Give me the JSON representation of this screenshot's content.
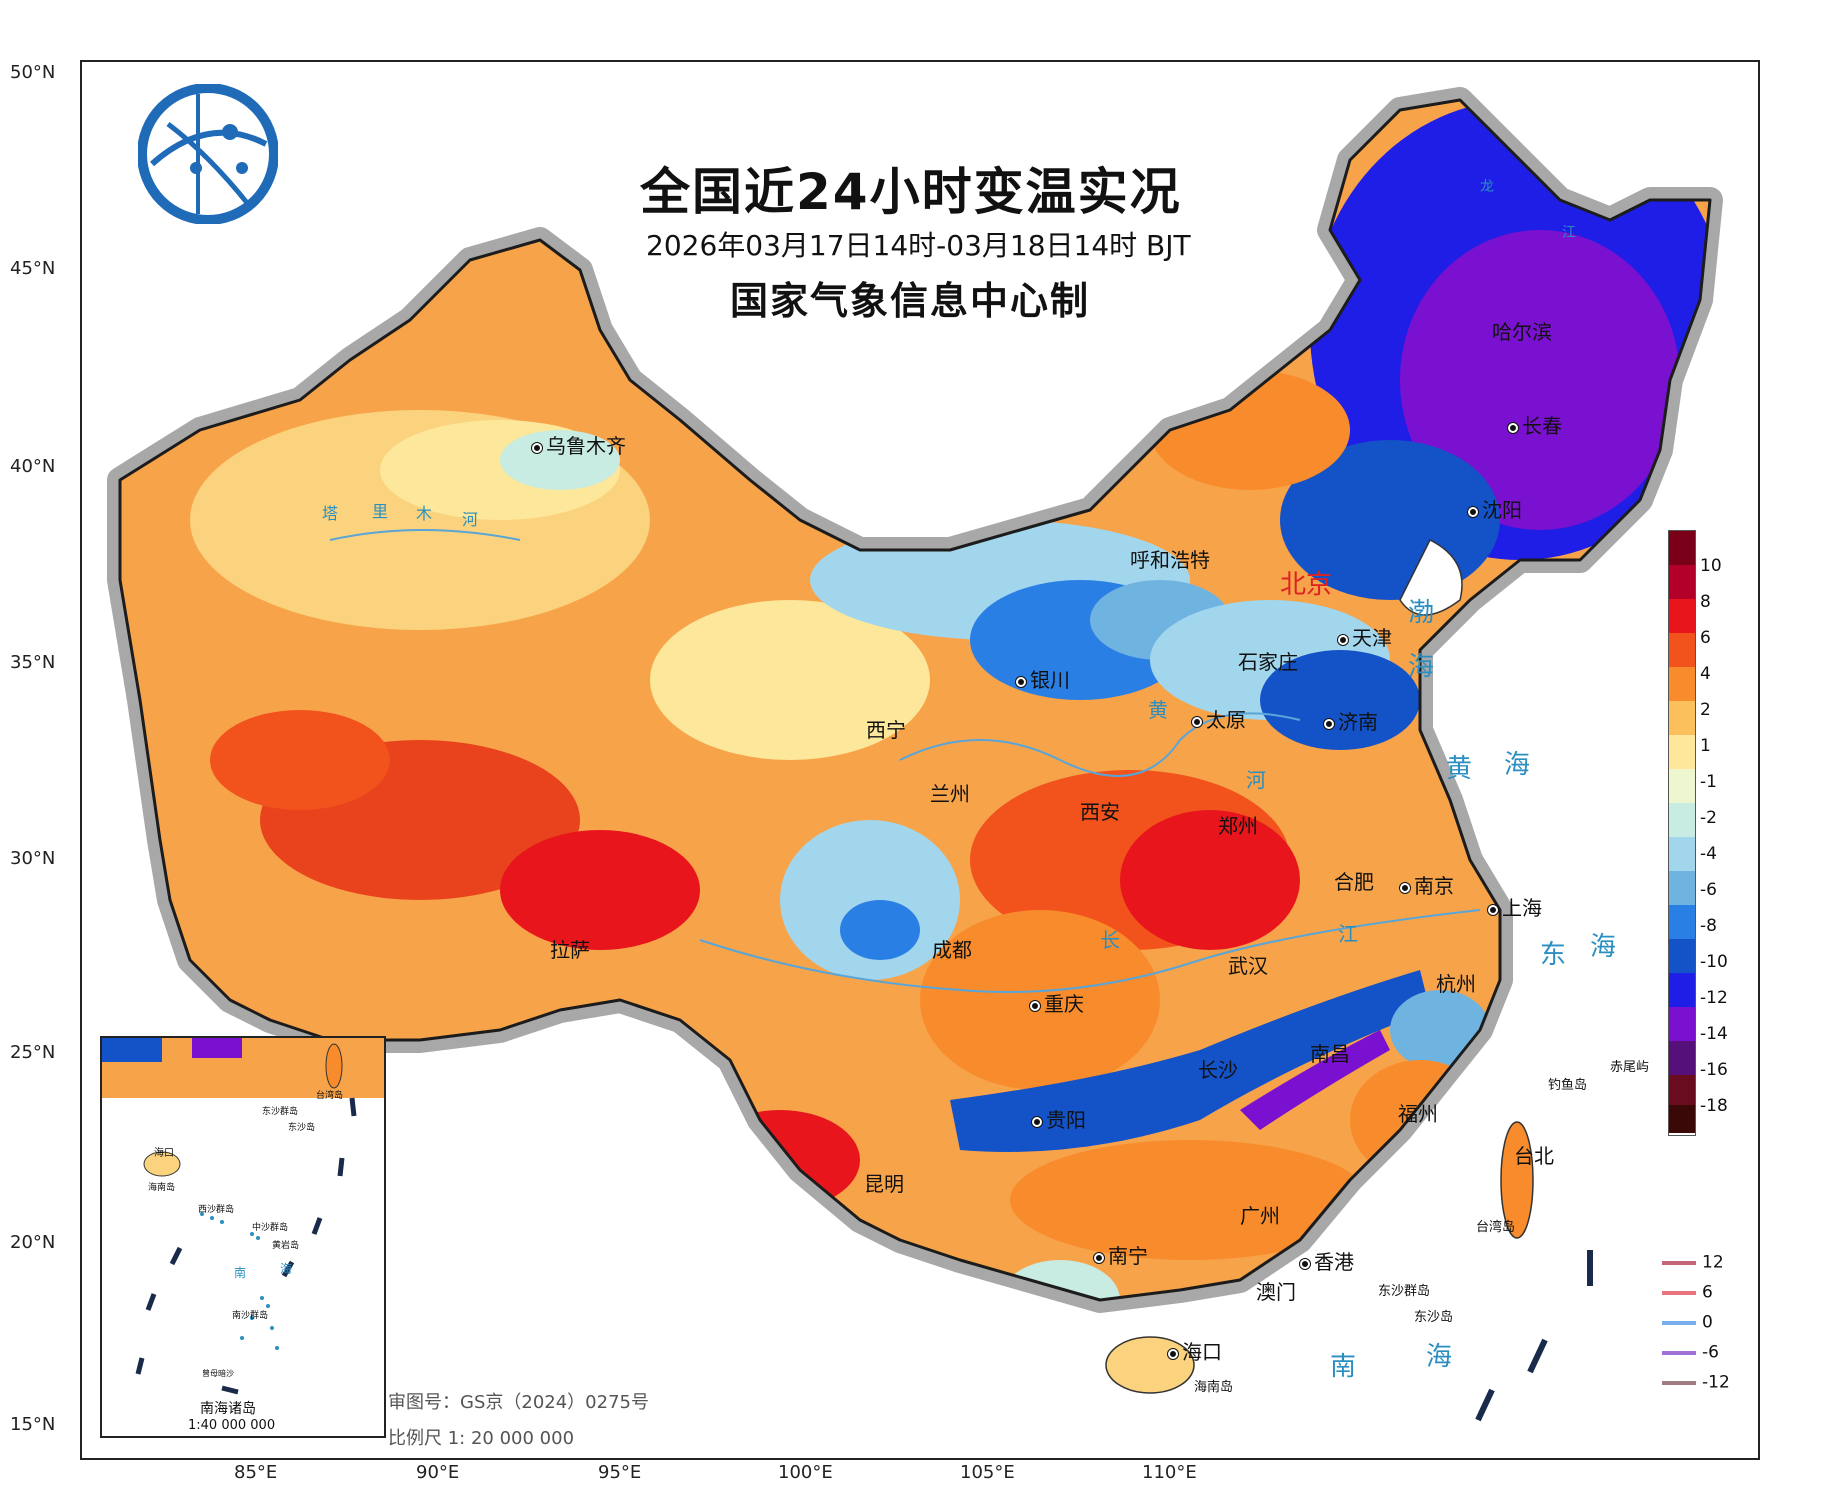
{
  "header": {
    "title": "全国近24小时变温实况",
    "subtitle": "2026年03月17日14时-03月18日14时 BJT",
    "agency": "国家气象信息中心制"
  },
  "axes": {
    "latitudes": [
      "50°N",
      "45°N",
      "40°N",
      "35°N",
      "30°N",
      "25°N",
      "20°N",
      "15°N"
    ],
    "longitudes": [
      "85°E",
      "90°E",
      "95°E",
      "100°E",
      "105°E",
      "110°E"
    ]
  },
  "cities": [
    {
      "name": "乌鲁木齐"
    },
    {
      "name": "呼和浩特"
    },
    {
      "name": "北京"
    },
    {
      "name": "天津"
    },
    {
      "name": "石家庄"
    },
    {
      "name": "太原"
    },
    {
      "name": "银川"
    },
    {
      "name": "西宁"
    },
    {
      "name": "兰州"
    },
    {
      "name": "西安"
    },
    {
      "name": "郑州"
    },
    {
      "name": "济南"
    },
    {
      "name": "沈阳"
    },
    {
      "name": "长春"
    },
    {
      "name": "哈尔滨"
    },
    {
      "name": "拉萨"
    },
    {
      "name": "成都"
    },
    {
      "name": "重庆"
    },
    {
      "name": "武汉"
    },
    {
      "name": "合肥"
    },
    {
      "name": "南京"
    },
    {
      "name": "上海"
    },
    {
      "name": "杭州"
    },
    {
      "name": "南昌"
    },
    {
      "name": "长沙"
    },
    {
      "name": "福州"
    },
    {
      "name": "贵阳"
    },
    {
      "name": "昆明"
    },
    {
      "name": "南宁"
    },
    {
      "name": "广州"
    },
    {
      "name": "香港"
    },
    {
      "name": "澳门"
    },
    {
      "name": "海口"
    },
    {
      "name": "台北"
    }
  ],
  "seas": [
    "渤",
    "海",
    "黄",
    "海",
    "东",
    "海",
    "南",
    "海"
  ],
  "rivers": [
    "塔",
    "里",
    "木",
    "河",
    "黄",
    "河",
    "长",
    "江",
    "龙",
    "江"
  ],
  "islands": [
    "钓鱼岛",
    "赤尾屿",
    "台湾岛",
    "东沙群岛",
    "东沙岛",
    "海南岛"
  ],
  "legend": {
    "labels": [
      "10",
      "8",
      "6",
      "4",
      "2",
      "1",
      "-1",
      "-2",
      "-4",
      "-6",
      "-8",
      "-10",
      "-12",
      "-14",
      "-16",
      "-18"
    ],
    "colors": [
      "#7a0019",
      "#b3002a",
      "#e8161c",
      "#f2521c",
      "#f88c2c",
      "#fbc05c",
      "#fde79a",
      "#eef6cf",
      "#c8ebe2",
      "#a2d6ec",
      "#6fb3e0",
      "#2a7fe4",
      "#1452c8",
      "#1e1ee6",
      "#7a10d0",
      "#55107a",
      "#6a0c20",
      "#3b0808"
    ]
  },
  "line_legend": [
    {
      "label": "12",
      "color": "#c4647a"
    },
    {
      "label": "6",
      "color": "#e9747f"
    },
    {
      "label": "0",
      "color": "#78aeea"
    },
    {
      "label": "-6",
      "color": "#a070d6"
    },
    {
      "label": "-12",
      "color": "#a07b80"
    }
  ],
  "inset": {
    "title": "南海诸岛",
    "scale": "1:40 000 000",
    "labels": [
      "海口",
      "海南岛",
      "西沙群岛",
      "中沙群岛",
      "黄岩岛",
      "南",
      "海",
      "南沙群岛",
      "曾母暗沙",
      "东沙群岛",
      "东沙岛",
      "台湾岛"
    ]
  },
  "map_info": {
    "review_no": "审图号：GS京（2024）0275号",
    "scale": "比例尺 1: 20 000 000"
  }
}
